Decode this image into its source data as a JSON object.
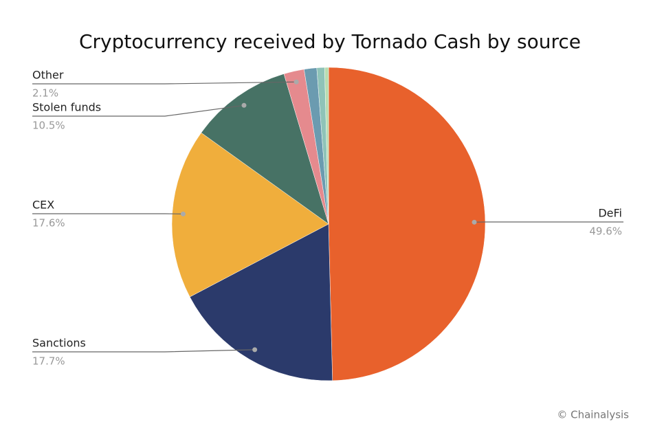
{
  "chart_data": {
    "type": "pie",
    "title": "Cryptocurrency received by Tornado Cash by source",
    "categories": [
      "DeFi",
      "Sanctions",
      "CEX",
      "Stolen funds",
      "Other",
      null,
      null,
      null
    ],
    "values": [
      49.6,
      17.7,
      17.6,
      10.5,
      2.1,
      1.3,
      0.8,
      0.4
    ],
    "value_labels": [
      "49.6%",
      "17.7%",
      "17.6%",
      "10.5%",
      "2.1%",
      null,
      null,
      null
    ],
    "colors": [
      "#e8612c",
      "#2b3a6b",
      "#f0ae3c",
      "#477265",
      "#e58a8e",
      "#6b9bb0",
      "#8fc3b8",
      "#b8dcb0"
    ],
    "source": "© Chainalysis"
  }
}
